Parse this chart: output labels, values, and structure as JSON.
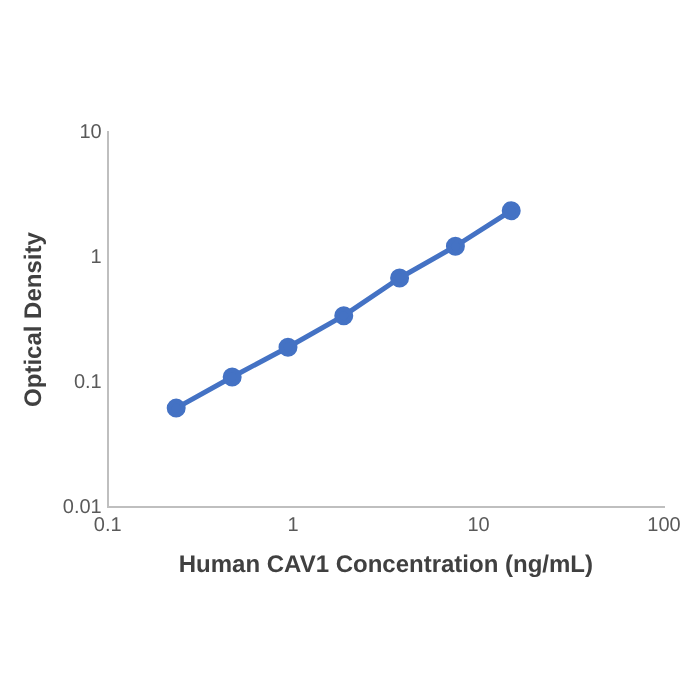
{
  "chart_data": {
    "type": "line",
    "xlabel": "Human CAV1 Concentration (ng/mL)",
    "ylabel": "Optical Density",
    "x": [
      0.234,
      0.469,
      0.938,
      1.875,
      3.75,
      7.5,
      15
    ],
    "series": [
      {
        "color": "#4472c4",
        "values": [
          0.062,
          0.11,
          0.19,
          0.34,
          0.68,
          1.22,
          2.35
        ]
      }
    ],
    "log": "xy",
    "xlim": [
      0.1,
      100
    ],
    "ylim": [
      0.01,
      10
    ],
    "xticks": [
      0.1,
      1,
      10,
      100
    ],
    "yticks": [
      0.01,
      0.1,
      1,
      10
    ],
    "marker": "circle",
    "line_style": "solid",
    "grid": false,
    "legend": false
  }
}
